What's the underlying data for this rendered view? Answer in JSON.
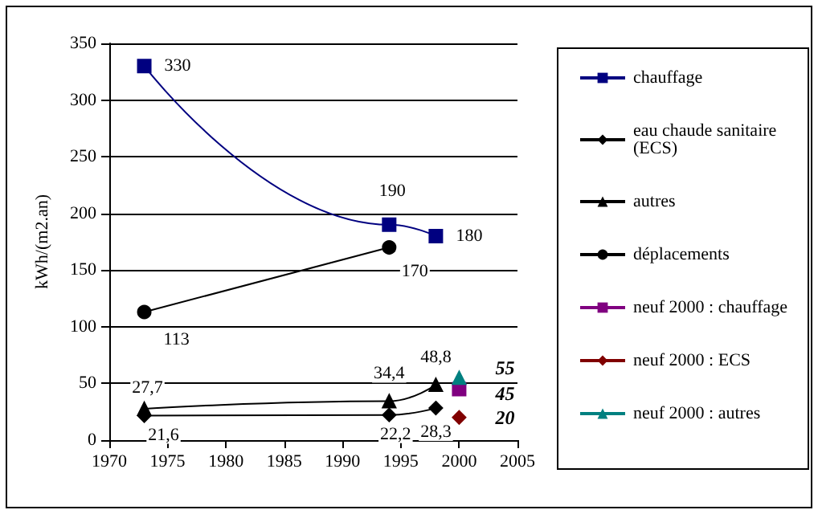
{
  "chart_data": {
    "type": "line",
    "ylabel": "kWh/(m2.an)",
    "xlim": [
      1970,
      2005
    ],
    "xticks": [
      1970,
      1975,
      1980,
      1985,
      1990,
      1995,
      2000,
      2005
    ],
    "ylim": [
      0,
      350
    ],
    "yticks": [
      0,
      50,
      100,
      150,
      200,
      250,
      300,
      350
    ],
    "grid": "y",
    "legend": "right",
    "line_style": "solid",
    "series": [
      {
        "name": "chauffage",
        "color": "#000080",
        "marker": "square",
        "x": [
          1973,
          1994,
          1998
        ],
        "values": [
          330,
          190,
          180
        ],
        "value_labels": [
          "330",
          "190",
          "180"
        ]
      },
      {
        "name": "eau chaude sanitaire (ECS)",
        "color": "#000000",
        "marker": "diamond",
        "x": [
          1973,
          1994,
          1998
        ],
        "values": [
          21.6,
          22.2,
          28.3
        ],
        "value_labels": [
          "21,6",
          "22,2",
          "28,3"
        ]
      },
      {
        "name": "autres",
        "color": "#000000",
        "marker": "triangle",
        "x": [
          1973,
          1994,
          1998
        ],
        "values": [
          27.7,
          34.4,
          48.8
        ],
        "value_labels": [
          "27,7",
          "34,4",
          "48,8"
        ]
      },
      {
        "name": "déplacements",
        "color": "#000000",
        "marker": "circle",
        "x": [
          1973,
          1994
        ],
        "values": [
          113,
          170
        ],
        "value_labels": [
          "113",
          "170"
        ]
      },
      {
        "name": "neuf 2000 : chauffage",
        "color": "#800080",
        "marker": "square",
        "x": [
          2000
        ],
        "values": [
          45
        ],
        "value_labels": [
          "45"
        ]
      },
      {
        "name": "neuf 2000 : ECS",
        "color": "#800000",
        "marker": "diamond",
        "x": [
          2000
        ],
        "values": [
          20
        ],
        "value_labels": [
          "20"
        ]
      },
      {
        "name": "neuf 2000 : autres",
        "color": "#008080",
        "marker": "triangle",
        "x": [
          2000
        ],
        "values": [
          55
        ],
        "value_labels": [
          "55"
        ]
      }
    ]
  }
}
